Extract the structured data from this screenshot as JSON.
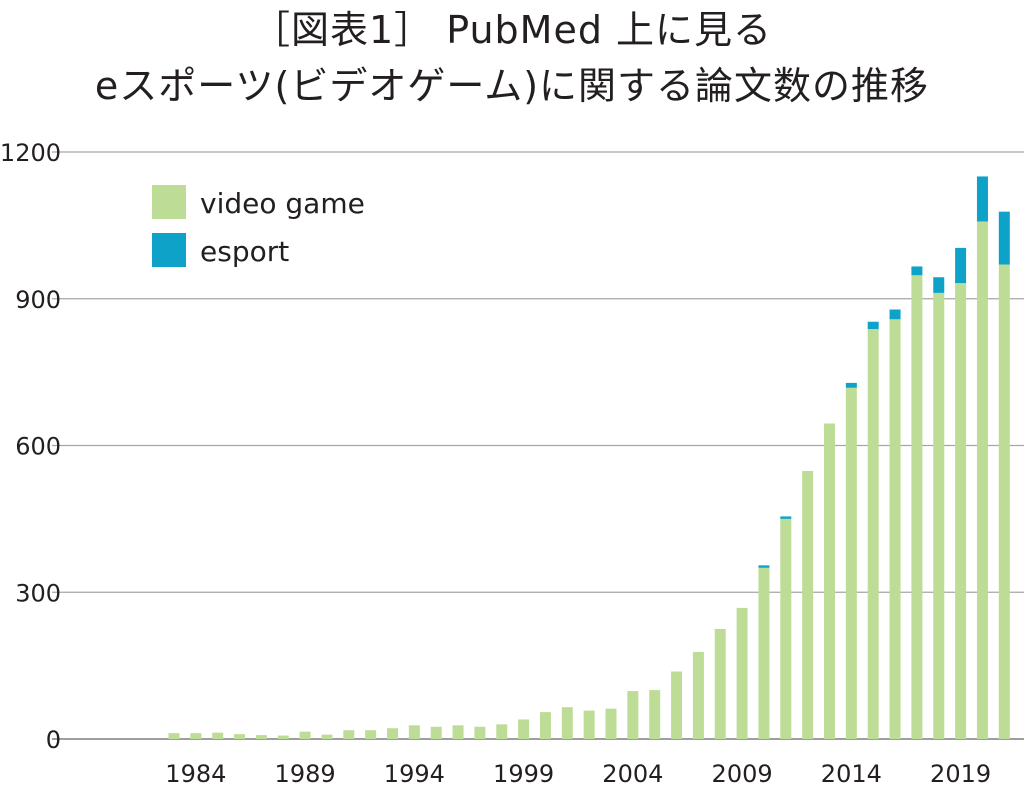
{
  "title_line1": "［図表1］ PubMed 上に見る",
  "title_line2": "eスポーツ(ビデオゲーム)に関する論文数の推移",
  "colors": {
    "video_game": "#bddd96",
    "esport": "#0ea2c8",
    "grid": "#a6a6a6"
  },
  "chart_data": {
    "type": "bar",
    "stacked": true,
    "title": "［図表1］ PubMed 上に見る eスポーツ(ビデオゲーム)に関する論文数の推移",
    "xlabel": "",
    "ylabel": "",
    "ylim": [
      0,
      1200
    ],
    "yticks": [
      0,
      300,
      600,
      900,
      1200
    ],
    "xtick_labels": [
      "1984",
      "1989",
      "1994",
      "1999",
      "2004",
      "2009",
      "2014",
      "2019"
    ],
    "grid": true,
    "legend_position": "top-left",
    "categories": [
      1983,
      1984,
      1985,
      1986,
      1987,
      1988,
      1989,
      1990,
      1991,
      1992,
      1993,
      1994,
      1995,
      1996,
      1997,
      1998,
      1999,
      2000,
      2001,
      2002,
      2003,
      2004,
      2005,
      2006,
      2007,
      2008,
      2009,
      2010,
      2011,
      2012,
      2013,
      2014,
      2015,
      2016,
      2017,
      2018,
      2019,
      2020,
      2021
    ],
    "series": [
      {
        "name": "video game",
        "values": [
          12,
          12,
          13,
          10,
          8,
          7,
          15,
          9,
          18,
          18,
          22,
          28,
          25,
          28,
          25,
          30,
          40,
          55,
          65,
          58,
          62,
          98,
          100,
          138,
          178,
          225,
          268,
          350,
          450,
          548,
          645,
          718,
          838,
          858,
          948,
          912,
          932,
          1058,
          970
        ]
      },
      {
        "name": "esport",
        "values": [
          0,
          0,
          0,
          0,
          0,
          0,
          0,
          0,
          0,
          0,
          0,
          0,
          0,
          0,
          0,
          0,
          0,
          0,
          0,
          0,
          0,
          0,
          0,
          0,
          0,
          0,
          0,
          5,
          5,
          0,
          0,
          10,
          15,
          20,
          18,
          32,
          72,
          92,
          108
        ]
      }
    ]
  }
}
